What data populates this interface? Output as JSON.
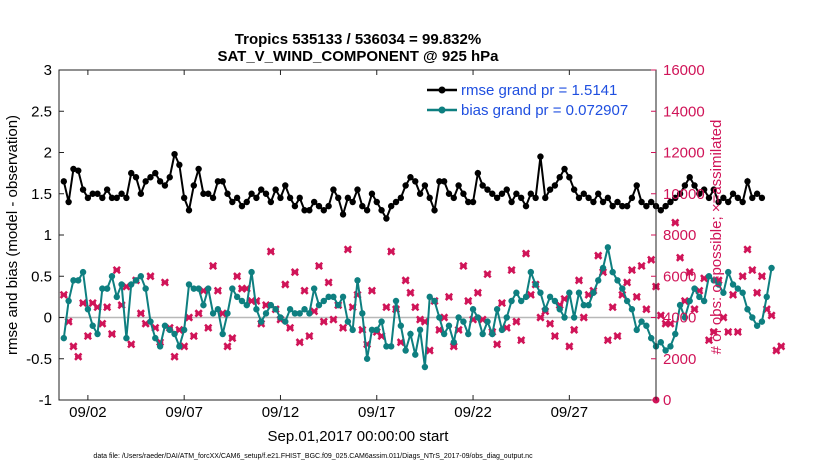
{
  "chart_data": {
    "type": "line",
    "title_line1": "Tropics 535133 / 536034 = 99.832%",
    "title_line2": "SAT_V_WIND_COMPONENT @ 925 hPa",
    "xlabel": "Sep.01,2017 00:00:00 start",
    "ylabel": "rmse and bias (model - observation)",
    "ylabel_right": "# of obs: o=possible; ×=assimilated",
    "xlim": [
      0.5,
      31.5
    ],
    "ylim": [
      -1,
      3
    ],
    "ylim_right": [
      0,
      16000
    ],
    "x_ticks": [
      {
        "value": 2,
        "label": "09/02"
      },
      {
        "value": 7,
        "label": "09/07"
      },
      {
        "value": 12,
        "label": "09/12"
      },
      {
        "value": 17,
        "label": "09/17"
      },
      {
        "value": 22,
        "label": "09/22"
      },
      {
        "value": 27,
        "label": "09/27"
      }
    ],
    "y_ticks": [
      {
        "value": 3,
        "label": "3"
      },
      {
        "value": 2.5,
        "label": "2.5"
      },
      {
        "value": 2,
        "label": "2"
      },
      {
        "value": 1.5,
        "label": "1.5"
      },
      {
        "value": 1,
        "label": "1"
      },
      {
        "value": 0.5,
        "label": "0.5"
      },
      {
        "value": 0,
        "label": "0"
      },
      {
        "value": -0.5,
        "label": "-0.5"
      },
      {
        "value": -1,
        "label": "-1"
      }
    ],
    "y_ticks_right": [
      {
        "value": 16000,
        "label": "16000"
      },
      {
        "value": 14000,
        "label": "14000"
      },
      {
        "value": 12000,
        "label": "12000"
      },
      {
        "value": 10000,
        "label": "10000"
      },
      {
        "value": 8000,
        "label": "8000"
      },
      {
        "value": 6000,
        "label": "6000"
      },
      {
        "value": 4000,
        "label": "4000"
      },
      {
        "value": 2000,
        "label": "2000"
      },
      {
        "value": 0,
        "label": "0"
      }
    ],
    "x_start": 0.75,
    "x_step": 0.25,
    "series": [
      {
        "name": "rmse grand pr = 1.5141",
        "color": "#000000",
        "values": [
          1.65,
          1.4,
          1.8,
          1.78,
          1.55,
          1.45,
          1.5,
          1.5,
          1.45,
          1.55,
          1.45,
          1.45,
          1.5,
          1.45,
          1.75,
          1.7,
          1.5,
          1.65,
          1.7,
          1.75,
          1.65,
          1.6,
          1.7,
          1.98,
          1.85,
          1.45,
          1.3,
          1.6,
          1.8,
          1.5,
          1.5,
          1.45,
          1.65,
          1.65,
          1.5,
          1.4,
          1.45,
          1.35,
          1.4,
          1.5,
          1.45,
          1.55,
          1.5,
          1.4,
          1.55,
          1.45,
          1.6,
          1.45,
          1.35,
          1.45,
          1.3,
          1.3,
          1.4,
          1.35,
          1.3,
          1.35,
          1.55,
          1.45,
          1.25,
          1.45,
          1.4,
          1.55,
          1.35,
          1.3,
          1.5,
          1.4,
          1.3,
          1.2,
          1.35,
          1.4,
          1.45,
          1.6,
          1.7,
          1.65,
          1.5,
          1.6,
          1.45,
          1.3,
          1.65,
          1.65,
          1.5,
          1.45,
          1.6,
          1.5,
          1.4,
          1.4,
          1.75,
          1.6,
          1.55,
          1.5,
          1.45,
          1.5,
          1.55,
          1.4,
          1.5,
          1.45,
          1.35,
          1.5,
          1.45,
          1.95,
          1.45,
          1.55,
          1.6,
          1.7,
          1.8,
          1.7,
          1.55,
          1.45,
          1.5,
          1.45,
          1.4,
          1.5,
          1.4,
          1.45,
          1.35,
          1.4,
          1.35,
          1.35,
          1.45,
          1.6,
          1.4,
          1.35,
          1.4,
          1.35,
          1.3,
          1.35,
          1.4,
          1.45,
          1.5,
          1.6,
          1.7,
          1.6,
          1.5,
          1.55,
          1.45,
          1.55,
          1.4,
          1.45,
          1.4,
          1.5,
          1.45,
          1.4,
          1.65,
          1.45,
          1.5,
          1.45
        ]
      },
      {
        "name": "bias grand pr = 0.072907",
        "color": "#0e7f80",
        "values": [
          -0.25,
          0.2,
          0.45,
          0.45,
          0.55,
          0.1,
          -0.1,
          -0.2,
          0.35,
          0.35,
          0.5,
          0.25,
          0.4,
          -0.25,
          0.4,
          0.45,
          0.5,
          0.35,
          -0.05,
          -0.25,
          -0.35,
          -0.1,
          -0.15,
          -0.2,
          -0.35,
          -0.15,
          0.4,
          0.35,
          0.35,
          0.15,
          0.35,
          0.05,
          0.1,
          -0.2,
          0.05,
          0.35,
          0.25,
          0.2,
          0.15,
          0.55,
          0.1,
          -0.05,
          0.05,
          0.15,
          0.1,
          0.0,
          -0.05,
          0.1,
          0.05,
          0.05,
          0.1,
          0.05,
          0.35,
          0.15,
          0.2,
          0.25,
          0.25,
          0.15,
          0.25,
          -0.05,
          -0.15,
          0.45,
          0.05,
          -0.5,
          -0.15,
          -0.15,
          -0.05,
          -0.35,
          -0.35,
          0.2,
          -0.1,
          -0.4,
          -0.2,
          -0.45,
          -0.15,
          -0.6,
          0.25,
          0.2,
          0.0,
          -0.2,
          -0.1,
          -0.3,
          0.0,
          -0.05,
          -0.2,
          0.1,
          0.0,
          -0.2,
          -0.05,
          -0.2,
          0.1,
          -0.15,
          0.0,
          0.2,
          0.3,
          0.2,
          0.25,
          0.55,
          0.4,
          0.3,
          0.1,
          0.25,
          0.2,
          0.1,
          0.0,
          0.3,
          0.0,
          0.3,
          0.15,
          0.15,
          0.3,
          0.45,
          0.6,
          0.85,
          0.55,
          0.45,
          0.35,
          0.2,
          0.1,
          -0.15,
          -0.05,
          -0.1,
          -0.25,
          -0.35,
          -0.3,
          -0.4,
          -0.35,
          -0.2,
          0.15,
          0.0,
          0.2,
          0.35,
          0.25,
          0.2,
          0.5,
          0.45,
          0.4,
          0.3,
          0.55,
          0.4,
          0.35,
          0.3,
          0.1,
          0.0,
          -0.1,
          -0.05,
          0.25,
          0.6
        ]
      }
    ],
    "obs_series": {
      "name": "# of obs assimilated",
      "color": "#d01458",
      "marker": "×",
      "values": [
        5100,
        3800,
        2600,
        2100,
        4700,
        3100,
        4700,
        4500,
        3700,
        4500,
        3200,
        6300,
        4600,
        5500,
        2700,
        5800,
        4200,
        3700,
        6000,
        3500,
        2800,
        5700,
        3500,
        2100,
        3400,
        2600,
        4000,
        3100,
        4200,
        5300,
        3500,
        6500,
        5300,
        4200,
        2600,
        3000,
        6000,
        5400,
        5400,
        4800,
        4800,
        3700,
        4600,
        7200,
        4400,
        3900,
        5600,
        3500,
        6200,
        2800,
        5300,
        3100,
        4300,
        6500,
        3800,
        5700,
        3900,
        4600,
        3500,
        7300,
        4500,
        5100,
        3400,
        2700,
        5300,
        3300,
        3100,
        4500,
        7200,
        4400,
        2800,
        5800,
        5200,
        4500,
        3900,
        3800,
        2400,
        4800,
        3400,
        4000,
        5000,
        2600,
        3400,
        6500,
        4800,
        3900,
        5200,
        3900,
        6100,
        3300,
        2700,
        4700,
        3500,
        6300,
        3800,
        2900,
        7100,
        5100,
        5600,
        4000,
        4300,
        3700,
        3100,
        4600,
        4900,
        2600,
        3400,
        5800,
        4000,
        5100,
        5300,
        7000,
        6200,
        2900,
        4500,
        3100,
        5100,
        5700,
        6300,
        5000,
        6500,
        4400,
        6800,
        5500,
        4100,
        3700,
        3700,
        8600,
        6900,
        4800,
        6200,
        4400,
        5300,
        5900,
        2900,
        3300,
        5800,
        4000,
        3300,
        5100,
        3300,
        6000,
        7300,
        6300,
        5200,
        6000,
        4400,
        4100,
        2400,
        2600
      ]
    },
    "footnote": "data file: /Users/raeder/DAI/ATM_forcXX/CAM6_setup/f.e21.FHIST_BGC.f09_025.CAM6assim.011/Diags_NTrS_2017-09/obs_diag_output.nc"
  }
}
